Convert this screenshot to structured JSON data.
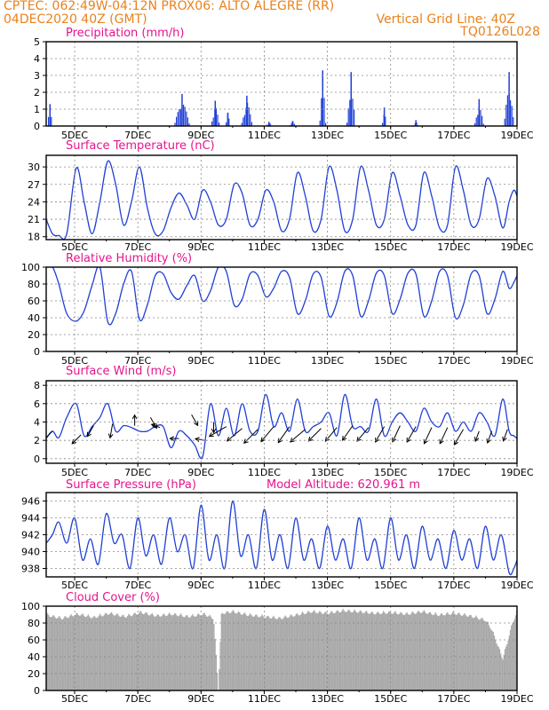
{
  "header": {
    "line1_left": "CPTEC:  062:49W-04:12N  PROX06: ALTO ALEGRE (RR)",
    "line2_left": "04DEC2020 40Z (GMT)",
    "line2_right": "Vertical Grid Line: 40Z",
    "line3_right": "TQ0126L028"
  },
  "colors": {
    "header": "#e8821e",
    "title": "#e6148c",
    "series": "#1f3fd6",
    "cloud": "#a9a9a9",
    "grid": "#888888"
  },
  "x_axis": {
    "ticks": [
      "5DEC",
      "7DEC",
      "9DEC",
      "11DEC",
      "13DEC",
      "15DEC",
      "17DEC",
      "19DEC"
    ],
    "tick_days": [
      5,
      7,
      9,
      11,
      13,
      15,
      17,
      19
    ],
    "range_days": [
      4.1,
      19.0
    ]
  },
  "chart_data": [
    {
      "type": "bar",
      "title": "Precipitation (mm/h)",
      "ylim": [
        0,
        5
      ],
      "yticks": [
        "0",
        "1",
        "2",
        "3",
        "4",
        "5"
      ],
      "events": [
        {
          "day": 4.22,
          "peak": 1.3,
          "width": 0.08
        },
        {
          "day": 8.4,
          "peak": 1.9,
          "width": 0.25
        },
        {
          "day": 9.45,
          "peak": 1.5,
          "width": 0.14
        },
        {
          "day": 9.85,
          "peak": 0.8,
          "width": 0.08
        },
        {
          "day": 10.45,
          "peak": 1.8,
          "width": 0.18
        },
        {
          "day": 11.15,
          "peak": 0.25,
          "width": 0.1
        },
        {
          "day": 11.9,
          "peak": 0.3,
          "width": 0.1
        },
        {
          "day": 12.85,
          "peak": 3.3,
          "width": 0.1
        },
        {
          "day": 13.75,
          "peak": 3.2,
          "width": 0.14
        },
        {
          "day": 14.8,
          "peak": 1.1,
          "width": 0.08
        },
        {
          "day": 15.8,
          "peak": 0.35,
          "width": 0.08
        },
        {
          "day": 17.8,
          "peak": 1.6,
          "width": 0.15
        },
        {
          "day": 18.75,
          "peak": 3.2,
          "width": 0.16
        }
      ]
    },
    {
      "type": "line",
      "title": "Surface Temperature (nC)",
      "ylim": [
        17.5,
        32
      ],
      "yticks": [
        "18",
        "21",
        "24",
        "27",
        "30"
      ],
      "ytick_values": [
        18,
        21,
        24,
        27,
        30
      ],
      "x": [
        4.1,
        4.3,
        4.5,
        4.75,
        5.05,
        5.3,
        5.55,
        5.8,
        6.05,
        6.3,
        6.55,
        6.8,
        7.05,
        7.3,
        7.55,
        7.8,
        8.05,
        8.3,
        8.55,
        8.8,
        9.05,
        9.3,
        9.55,
        9.8,
        10.05,
        10.3,
        10.55,
        10.8,
        11.05,
        11.3,
        11.55,
        11.8,
        12.05,
        12.3,
        12.55,
        12.8,
        13.05,
        13.3,
        13.55,
        13.8,
        14.05,
        14.3,
        14.55,
        14.8,
        15.05,
        15.3,
        15.55,
        15.8,
        16.05,
        16.3,
        16.55,
        16.8,
        17.05,
        17.3,
        17.55,
        17.8,
        18.05,
        18.3,
        18.55,
        18.75,
        18.9,
        19.0
      ],
      "y": [
        21,
        18.5,
        18.2,
        18.5,
        29.8,
        24,
        18.5,
        24,
        31,
        27,
        20,
        24,
        30,
        23,
        18.5,
        19,
        23,
        25.5,
        23.5,
        21,
        26,
        24,
        20,
        21,
        27,
        25.5,
        20,
        21,
        26,
        24,
        19,
        21,
        29,
        25,
        19,
        21,
        30,
        26,
        19,
        21,
        30,
        26,
        20,
        21,
        29,
        25,
        20,
        20,
        29,
        25,
        19.5,
        20,
        30,
        26,
        20,
        21,
        28,
        25,
        19.5,
        24,
        26,
        25
      ]
    },
    {
      "type": "line",
      "title": "Relative Humidity (%)",
      "ylim": [
        0,
        100
      ],
      "yticks": [
        "0",
        "20",
        "40",
        "60",
        "80",
        "100"
      ],
      "ytick_values": [
        0,
        20,
        40,
        60,
        80,
        100
      ],
      "x": [
        4.1,
        4.3,
        4.5,
        4.75,
        5.05,
        5.3,
        5.55,
        5.8,
        6.05,
        6.3,
        6.55,
        6.8,
        7.05,
        7.3,
        7.55,
        7.8,
        8.05,
        8.3,
        8.55,
        8.8,
        9.05,
        9.3,
        9.55,
        9.8,
        10.05,
        10.3,
        10.55,
        10.8,
        11.05,
        11.3,
        11.55,
        11.8,
        12.05,
        12.3,
        12.55,
        12.8,
        13.05,
        13.3,
        13.55,
        13.8,
        14.05,
        14.3,
        14.55,
        14.8,
        15.05,
        15.3,
        15.55,
        15.8,
        16.05,
        16.3,
        16.55,
        16.8,
        17.05,
        17.3,
        17.55,
        17.8,
        18.05,
        18.3,
        18.55,
        18.75,
        18.9,
        19.0
      ],
      "y": [
        100,
        100,
        80,
        45,
        36,
        48,
        78,
        100,
        35,
        45,
        80,
        95,
        38,
        55,
        90,
        92,
        70,
        62,
        78,
        90,
        60,
        72,
        100,
        95,
        55,
        62,
        92,
        90,
        65,
        75,
        95,
        88,
        45,
        60,
        92,
        88,
        42,
        58,
        95,
        90,
        42,
        60,
        93,
        90,
        45,
        62,
        93,
        92,
        42,
        60,
        95,
        90,
        40,
        55,
        92,
        90,
        45,
        62,
        95,
        75,
        82,
        90
      ]
    },
    {
      "type": "line",
      "title": "Surface Wind (m/s)",
      "ylim": [
        -0.5,
        8.5
      ],
      "yticks": [
        "0",
        "2",
        "4",
        "6",
        "8"
      ],
      "ytick_values": [
        0,
        2,
        4,
        6,
        8
      ],
      "x": [
        4.1,
        4.3,
        4.5,
        4.75,
        5.05,
        5.3,
        5.55,
        5.8,
        6.05,
        6.3,
        6.55,
        6.8,
        7.05,
        7.3,
        7.55,
        7.8,
        8.05,
        8.3,
        8.55,
        8.8,
        9.05,
        9.3,
        9.55,
        9.8,
        10.05,
        10.3,
        10.55,
        10.8,
        11.05,
        11.3,
        11.55,
        11.8,
        12.05,
        12.3,
        12.55,
        12.8,
        13.05,
        13.3,
        13.55,
        13.8,
        14.05,
        14.3,
        14.55,
        14.8,
        15.05,
        15.3,
        15.55,
        15.8,
        16.05,
        16.3,
        16.55,
        16.8,
        17.05,
        17.3,
        17.55,
        17.8,
        18.05,
        18.3,
        18.55,
        18.75,
        18.9,
        19.0
      ],
      "y": [
        2.2,
        3,
        2.3,
        4.5,
        6,
        2.5,
        3.5,
        4.5,
        6,
        3,
        3.6,
        3.4,
        3,
        3,
        3.5,
        3.5,
        1.2,
        3,
        2.5,
        1.5,
        0.2,
        6,
        2.5,
        5.5,
        2.5,
        6,
        3,
        3,
        7,
        3.5,
        5,
        3,
        6.5,
        3,
        3.5,
        4,
        5,
        2.5,
        7,
        3.5,
        3.5,
        3,
        6.5,
        2.5,
        4,
        5,
        4,
        3,
        5.5,
        4,
        3.5,
        5,
        3,
        4,
        3,
        5,
        4,
        2.5,
        6.5,
        3,
        2.5,
        2.2
      ],
      "vectors": [
        {
          "day": 4.3,
          "y": 3,
          "dir": 225,
          "len": 16
        },
        {
          "day": 5.2,
          "y": 2.6,
          "dir": 225,
          "len": 14
        },
        {
          "day": 5.6,
          "y": 3.6,
          "dir": 240,
          "len": 14
        },
        {
          "day": 6.2,
          "y": 3.8,
          "dir": 260,
          "len": 16
        },
        {
          "day": 6.9,
          "y": 3.6,
          "dir": 90,
          "len": 12
        },
        {
          "day": 7.4,
          "y": 4.5,
          "dir": 300,
          "len": 14
        },
        {
          "day": 7.7,
          "y": 3.4,
          "dir": 160,
          "len": 10
        },
        {
          "day": 8.3,
          "y": 2.2,
          "dir": 180,
          "len": 10
        },
        {
          "day": 8.7,
          "y": 4.8,
          "dir": 300,
          "len": 14
        },
        {
          "day": 9.1,
          "y": 2.0,
          "dir": 170,
          "len": 10
        },
        {
          "day": 9.4,
          "y": 4.0,
          "dir": 270,
          "len": 12
        },
        {
          "day": 9.8,
          "y": 3.5,
          "dir": 210,
          "len": 22
        },
        {
          "day": 10.3,
          "y": 3.3,
          "dir": 220,
          "len": 22
        },
        {
          "day": 10.8,
          "y": 3.2,
          "dir": 225,
          "len": 22
        },
        {
          "day": 11.3,
          "y": 3.5,
          "dir": 230,
          "len": 22
        },
        {
          "day": 11.8,
          "y": 3.5,
          "dir": 235,
          "len": 22
        },
        {
          "day": 12.3,
          "y": 3.2,
          "dir": 220,
          "len": 22
        },
        {
          "day": 12.8,
          "y": 3.3,
          "dir": 225,
          "len": 20
        },
        {
          "day": 13.3,
          "y": 3.4,
          "dir": 230,
          "len": 20
        },
        {
          "day": 13.8,
          "y": 3.6,
          "dir": 235,
          "len": 20
        },
        {
          "day": 14.3,
          "y": 3.4,
          "dir": 230,
          "len": 20
        },
        {
          "day": 14.8,
          "y": 3.5,
          "dir": 240,
          "len": 20
        },
        {
          "day": 15.3,
          "y": 3.6,
          "dir": 245,
          "len": 20
        },
        {
          "day": 15.8,
          "y": 3.5,
          "dir": 240,
          "len": 20
        },
        {
          "day": 16.3,
          "y": 3.4,
          "dir": 245,
          "len": 20
        },
        {
          "day": 16.8,
          "y": 3.4,
          "dir": 245,
          "len": 20
        },
        {
          "day": 17.3,
          "y": 3.2,
          "dir": 240,
          "len": 20
        },
        {
          "day": 17.8,
          "y": 3.0,
          "dir": 250,
          "len": 12
        },
        {
          "day": 18.2,
          "y": 3.0,
          "dir": 250,
          "len": 14
        },
        {
          "day": 18.7,
          "y": 3.2,
          "dir": 250,
          "len": 14
        }
      ]
    },
    {
      "type": "line",
      "title": "Surface Pressure (hPa)",
      "annotation": "Model Altitude: 620.961  m",
      "ylim": [
        937,
        947
      ],
      "yticks": [
        "938",
        "940",
        "942",
        "944",
        "946"
      ],
      "ytick_values": [
        938,
        940,
        942,
        944,
        946
      ],
      "x": [
        4.1,
        4.3,
        4.5,
        4.75,
        5.0,
        5.25,
        5.5,
        5.75,
        6.0,
        6.25,
        6.5,
        6.75,
        7.0,
        7.25,
        7.5,
        7.75,
        8.0,
        8.25,
        8.5,
        8.75,
        9.0,
        9.25,
        9.5,
        9.75,
        10.0,
        10.25,
        10.5,
        10.75,
        11.0,
        11.25,
        11.5,
        11.75,
        12.0,
        12.25,
        12.5,
        12.75,
        13.0,
        13.25,
        13.5,
        13.75,
        14.0,
        14.25,
        14.5,
        14.75,
        15.0,
        15.25,
        15.5,
        15.75,
        16.0,
        16.25,
        16.5,
        16.75,
        17.0,
        17.25,
        17.5,
        17.75,
        18.0,
        18.25,
        18.5,
        18.75,
        18.9,
        19.0
      ],
      "y": [
        941,
        942,
        943.5,
        941,
        944,
        939,
        941.5,
        938.5,
        944.5,
        941,
        942,
        938,
        944,
        939.5,
        942,
        938.5,
        944,
        940,
        942,
        938,
        945.5,
        939,
        942,
        938,
        946,
        939.5,
        942,
        938,
        945,
        939,
        942,
        938,
        944,
        939,
        941.5,
        938,
        943,
        939,
        941.5,
        938,
        944,
        939,
        941.5,
        938,
        944,
        939,
        942,
        938,
        943,
        939,
        941.5,
        938,
        942.5,
        939,
        941.5,
        938,
        943,
        939,
        942,
        937.5,
        938,
        939
      ]
    },
    {
      "type": "area",
      "title": "Cloud Cover (%)",
      "ylim": [
        0,
        100
      ],
      "yticks": [
        "0",
        "20",
        "40",
        "60",
        "80",
        "100"
      ],
      "ytick_values": [
        0,
        20,
        40,
        60,
        80,
        100
      ],
      "x": [
        4.1,
        4.6,
        5.1,
        5.6,
        6.1,
        6.6,
        7.1,
        7.6,
        8.1,
        8.6,
        9.1,
        9.4,
        9.55,
        9.65,
        10.0,
        10.5,
        11.0,
        11.5,
        12.0,
        12.5,
        13.0,
        13.5,
        14.0,
        14.5,
        15.0,
        15.5,
        16.0,
        16.5,
        17.0,
        17.5,
        18.0,
        18.2,
        18.4,
        18.55,
        18.7,
        18.85,
        19.0
      ],
      "y": [
        92,
        88,
        93,
        89,
        94,
        90,
        95,
        91,
        93,
        90,
        93,
        88,
        2,
        94,
        96,
        92,
        90,
        88,
        92,
        96,
        94,
        97,
        96,
        94,
        95,
        93,
        96,
        92,
        94,
        91,
        86,
        75,
        55,
        40,
        60,
        82,
        95
      ]
    }
  ]
}
